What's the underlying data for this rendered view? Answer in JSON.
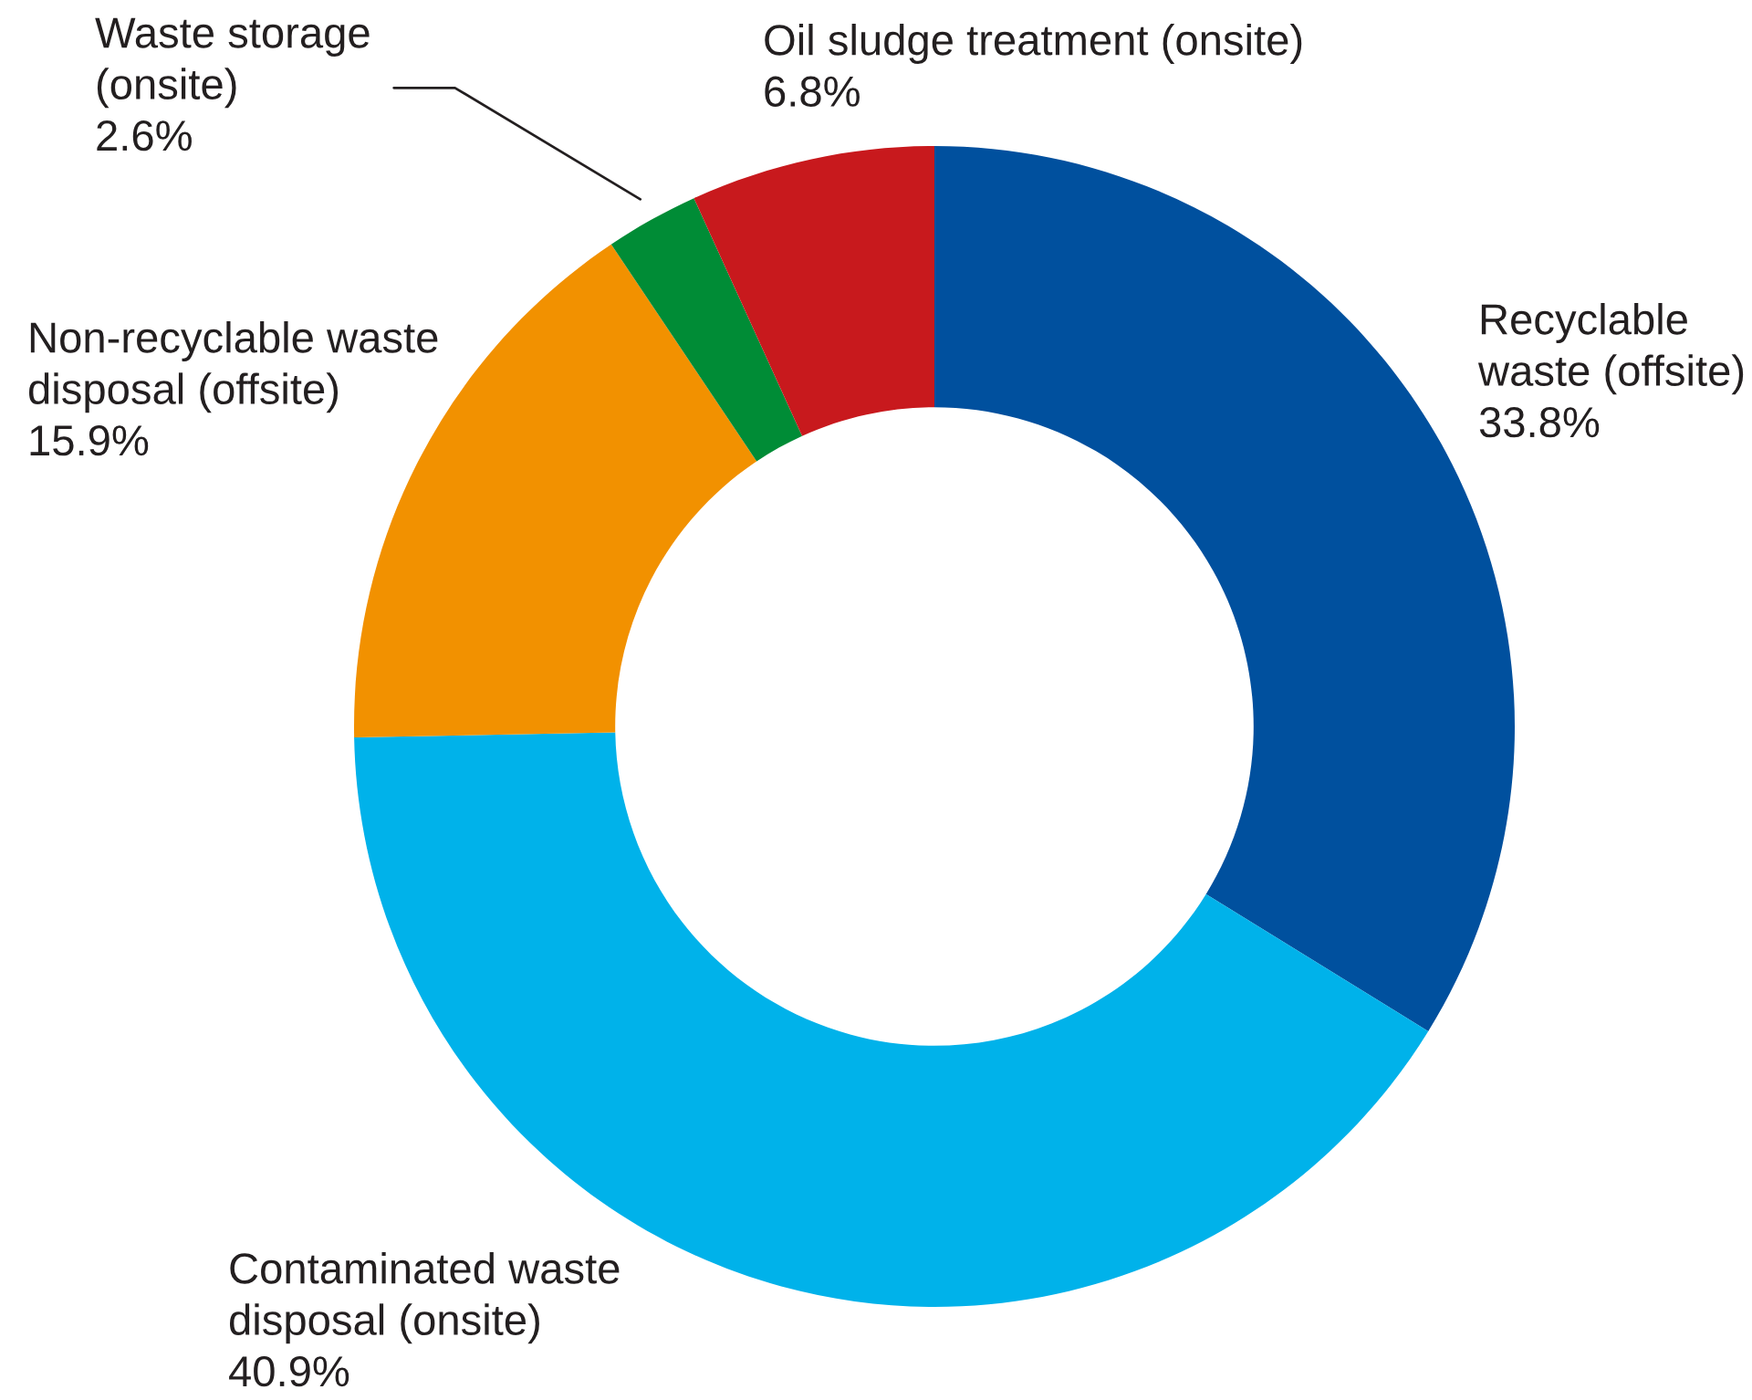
{
  "chart_data": {
    "type": "donut",
    "categories": [
      "Recyclable\nwaste (offsite)",
      "Contaminated waste\ndisposal (onsite)",
      "Non-recyclable waste\ndisposal (offsite)",
      "Waste storage\n(onsite)",
      "Oil sludge treatment (onsite)"
    ],
    "values": [
      33.8,
      40.9,
      15.9,
      2.6,
      6.8
    ],
    "value_labels": [
      "33.8%",
      "40.9%",
      "15.9%",
      "2.6%",
      "6.8%"
    ],
    "colors": [
      "#00509e",
      "#00b2ea",
      "#f29100",
      "#008c36",
      "#c8191d"
    ]
  }
}
